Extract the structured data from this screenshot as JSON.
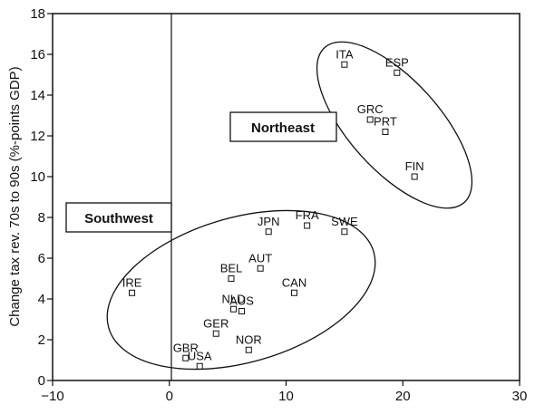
{
  "chart_data": {
    "type": "scatter",
    "title": "",
    "xlabel": "",
    "ylabel": "Change tax rev. 70s to 90s (%-points GDP)",
    "xlim": [
      -10,
      30
    ],
    "ylim": [
      0,
      18
    ],
    "xticks": [
      -10,
      0,
      10,
      20,
      30
    ],
    "yticks": [
      0,
      2,
      4,
      6,
      8,
      10,
      12,
      14,
      16,
      18
    ],
    "grid": false,
    "points": [
      {
        "label": "ITA",
        "x": 15.0,
        "y": 15.5
      },
      {
        "label": "ESP",
        "x": 19.5,
        "y": 15.1
      },
      {
        "label": "GRC",
        "x": 17.2,
        "y": 12.8
      },
      {
        "label": "PRT",
        "x": 18.5,
        "y": 12.2
      },
      {
        "label": "FIN",
        "x": 21.0,
        "y": 10.0
      },
      {
        "label": "JPN",
        "x": 8.5,
        "y": 7.3
      },
      {
        "label": "FRA",
        "x": 11.8,
        "y": 7.6
      },
      {
        "label": "SWE",
        "x": 15.0,
        "y": 7.3
      },
      {
        "label": "AUT",
        "x": 7.8,
        "y": 5.5
      },
      {
        "label": "BEL",
        "x": 5.3,
        "y": 5.0
      },
      {
        "label": "CAN",
        "x": 10.7,
        "y": 4.3
      },
      {
        "label": "NLD",
        "x": 5.5,
        "y": 3.5
      },
      {
        "label": "AUS",
        "x": 6.2,
        "y": 3.4
      },
      {
        "label": "IRE",
        "x": -3.2,
        "y": 4.3
      },
      {
        "label": "GER",
        "x": 4.0,
        "y": 2.3
      },
      {
        "label": "NOR",
        "x": 6.8,
        "y": 1.5
      },
      {
        "label": "GBR",
        "x": 1.4,
        "y": 1.1
      },
      {
        "label": "USA",
        "x": 2.6,
        "y": 0.7
      }
    ],
    "regions": [
      {
        "label": "Northeast"
      },
      {
        "label": "Southwest"
      }
    ]
  }
}
